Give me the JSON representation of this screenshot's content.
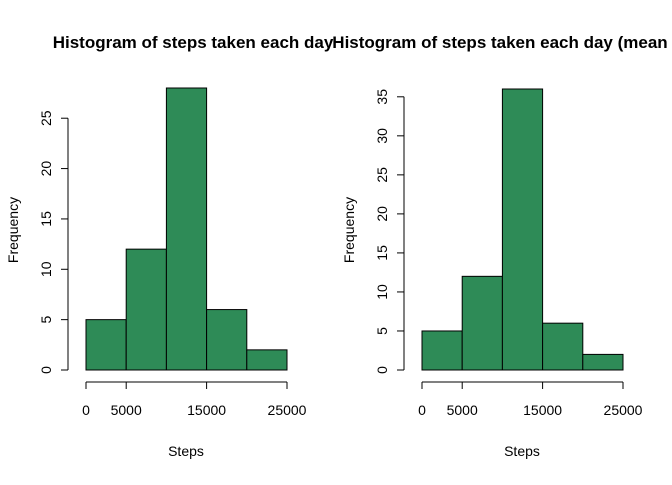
{
  "chart_data": [
    {
      "type": "bar",
      "title": "Histogram of steps taken each day",
      "xlabel": "Steps",
      "ylabel": "Frequency",
      "bin_edges": [
        0,
        5000,
        10000,
        15000,
        20000,
        25000
      ],
      "values": [
        5,
        12,
        28,
        6,
        2
      ],
      "x_ticks": [
        "0",
        "5000",
        "15000",
        "25000"
      ],
      "x_tick_values": [
        0,
        5000,
        15000,
        25000
      ],
      "y_ticks": [
        "0",
        "5",
        "10",
        "15",
        "20",
        "25"
      ],
      "xlim": [
        0,
        25000
      ],
      "ylim": [
        0,
        28
      ],
      "bar_color": "#2E8B57",
      "grid": false,
      "legend": "none"
    },
    {
      "type": "bar",
      "title": "Histogram of steps taken each day (mean",
      "xlabel": "Steps",
      "ylabel": "Frequency",
      "bin_edges": [
        0,
        5000,
        10000,
        15000,
        20000,
        25000
      ],
      "values": [
        5,
        12,
        36,
        6,
        2
      ],
      "x_ticks": [
        "0",
        "5000",
        "15000",
        "25000"
      ],
      "x_tick_values": [
        0,
        5000,
        15000,
        25000
      ],
      "y_ticks": [
        "0",
        "5",
        "10",
        "15",
        "20",
        "25",
        "30",
        "35"
      ],
      "xlim": [
        0,
        25000
      ],
      "ylim": [
        0,
        36
      ],
      "bar_color": "#2E8B57",
      "grid": false,
      "legend": "none"
    }
  ]
}
